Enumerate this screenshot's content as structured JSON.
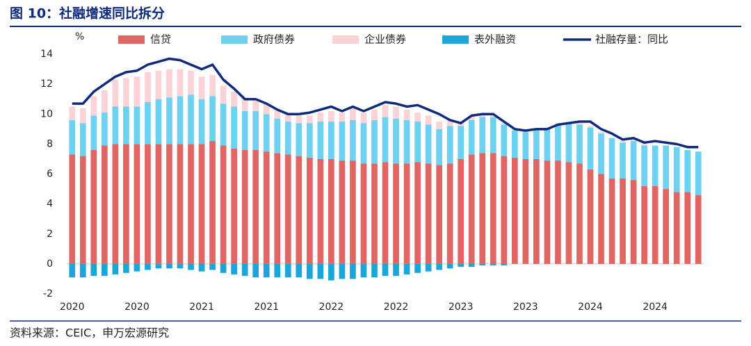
{
  "chart_data": {
    "type": "bar",
    "stacked": true,
    "title": "图 10：社融增速同比拆分",
    "y_label": "%",
    "source": "资料来源：CEIC，申万宏源研究",
    "categories": [
      "2020",
      null,
      null,
      null,
      null,
      null,
      "2020",
      null,
      null,
      null,
      null,
      null,
      "2021",
      null,
      null,
      null,
      null,
      null,
      "2021",
      null,
      null,
      null,
      null,
      null,
      "2022",
      null,
      null,
      null,
      null,
      null,
      "2022",
      null,
      null,
      null,
      null,
      null,
      "2023",
      null,
      null,
      null,
      null,
      null,
      "2023",
      null,
      null,
      null,
      null,
      null,
      "2024",
      null,
      null,
      null,
      null,
      null,
      "2024",
      null,
      null,
      null,
      null
    ],
    "series": [
      {
        "name": "信贷",
        "color": "#e06563",
        "values": [
          7.3,
          7.2,
          7.6,
          7.9,
          8.0,
          8.0,
          8.0,
          8.0,
          8.0,
          8.0,
          8.0,
          8.0,
          8.0,
          8.2,
          7.9,
          7.7,
          7.6,
          7.6,
          7.5,
          7.4,
          7.3,
          7.2,
          7.1,
          7.0,
          7.0,
          6.9,
          6.9,
          6.7,
          6.7,
          6.8,
          6.7,
          6.7,
          6.8,
          6.7,
          6.6,
          6.7,
          7.0,
          7.3,
          7.4,
          7.4,
          7.2,
          7.1,
          7.0,
          7.0,
          6.9,
          6.9,
          6.8,
          6.7,
          6.3,
          6.0,
          5.7,
          5.7,
          5.6,
          5.2,
          5.2,
          5.0,
          4.8,
          4.8,
          4.6
        ]
      },
      {
        "name": "政府债券",
        "color": "#6dd1f2",
        "values": [
          2.3,
          2.2,
          2.3,
          2.2,
          2.5,
          2.5,
          2.5,
          2.8,
          3.0,
          3.1,
          3.2,
          3.3,
          3.0,
          3.0,
          2.8,
          2.8,
          2.6,
          2.6,
          2.5,
          2.3,
          2.2,
          2.2,
          2.3,
          2.5,
          2.5,
          2.6,
          2.7,
          2.7,
          2.9,
          3.0,
          3.0,
          2.9,
          2.7,
          2.6,
          2.4,
          2.5,
          2.2,
          2.3,
          2.4,
          2.4,
          2.1,
          1.8,
          1.8,
          1.9,
          2.1,
          2.4,
          2.6,
          2.6,
          2.8,
          2.7,
          2.7,
          2.4,
          2.6,
          2.7,
          2.7,
          2.9,
          3.0,
          2.8,
          2.9
        ]
      },
      {
        "name": "企业债券",
        "color": "#f9d3d6",
        "values": [
          0.9,
          1.0,
          1.3,
          1.5,
          1.8,
          1.9,
          2.0,
          2.0,
          1.9,
          1.9,
          1.8,
          1.6,
          1.5,
          1.4,
          1.2,
          1.0,
          0.9,
          0.8,
          0.7,
          0.6,
          0.5,
          0.5,
          0.5,
          0.6,
          0.7,
          0.6,
          0.8,
          0.7,
          0.7,
          0.8,
          0.8,
          0.7,
          0.6,
          0.6,
          0.5,
          0.4,
          0.2,
          0.3,
          0.2,
          0.2,
          0.1,
          0.1,
          0.1,
          0.1,
          0.1,
          0.1,
          0.1,
          0.1,
          0.1,
          0.1,
          0.0,
          0.1,
          0.1,
          0.1,
          0.0,
          0.0,
          0.0,
          0.0,
          0.0
        ]
      },
      {
        "name": "表外融资",
        "color": "#1ba6db",
        "values": [
          -0.9,
          -0.9,
          -0.8,
          -0.8,
          -0.7,
          -0.6,
          -0.5,
          -0.4,
          -0.3,
          -0.3,
          -0.3,
          -0.4,
          -0.5,
          -0.4,
          -0.6,
          -0.7,
          -0.8,
          -0.9,
          -0.9,
          -0.9,
          -0.9,
          -0.9,
          -1.0,
          -1.0,
          -1.1,
          -1.0,
          -1.0,
          -0.9,
          -0.9,
          -0.8,
          -0.8,
          -0.7,
          -0.6,
          -0.5,
          -0.4,
          -0.3,
          -0.2,
          -0.2,
          -0.1,
          -0.1,
          -0.1,
          0,
          0,
          0,
          0,
          0,
          0,
          0,
          0,
          0,
          0,
          0,
          0,
          0,
          0,
          0,
          0,
          0,
          0
        ]
      },
      {
        "name": "社融存量：同比",
        "color": "#0e2a7c",
        "type": "line",
        "values": [
          10.7,
          10.7,
          11.5,
          12.0,
          12.5,
          12.8,
          12.9,
          13.3,
          13.5,
          13.7,
          13.6,
          13.3,
          13.0,
          13.3,
          12.3,
          11.7,
          11.0,
          11.0,
          10.7,
          10.3,
          10.0,
          10.0,
          10.1,
          10.3,
          10.5,
          10.2,
          10.5,
          10.2,
          10.5,
          10.8,
          10.7,
          10.5,
          10.6,
          10.3,
          10.0,
          9.6,
          9.4,
          9.9,
          10.0,
          10.0,
          9.5,
          9.0,
          8.9,
          9.0,
          9.0,
          9.3,
          9.4,
          9.5,
          9.5,
          9.0,
          8.7,
          8.3,
          8.4,
          8.1,
          8.2,
          8.1,
          8.0,
          7.8,
          7.8
        ]
      }
    ],
    "ylim": [
      -2,
      14
    ],
    "yticks": [
      -2,
      0,
      2,
      4,
      6,
      8,
      10,
      12,
      14
    ],
    "grid": false
  }
}
